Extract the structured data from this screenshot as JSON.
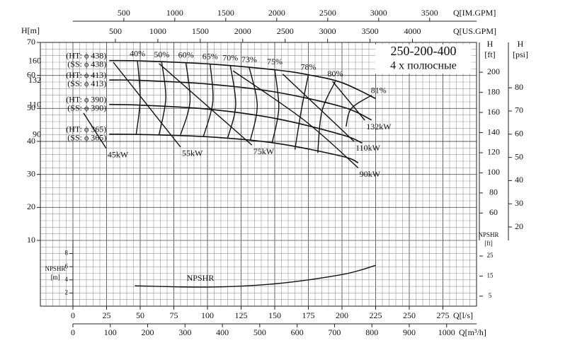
{
  "chart_data": {
    "type": "line",
    "title": "250-200-400",
    "subtitle": "4 х полюсные",
    "grid": true,
    "q_ls": {
      "label": [
        "Q[l/s]"
      ],
      "lim": [
        -24.2,
        300
      ],
      "ticks": [
        0,
        25,
        50,
        75,
        100,
        125,
        150,
        175,
        200,
        225,
        250,
        275
      ],
      "minor_step": 5
    },
    "q_m3h": {
      "label": [
        "Q[m³/h]"
      ],
      "lim": [
        -87.1,
        1080
      ],
      "ticks": [
        0,
        100,
        200,
        300,
        400,
        500,
        600,
        700,
        800,
        900,
        1000
      ]
    },
    "q_us": {
      "label": [
        "Q[US.GPM]"
      ],
      "lim": [
        -384,
        4755
      ],
      "ticks": [
        500,
        1000,
        1500,
        2000,
        2500,
        3000,
        3500,
        4000
      ]
    },
    "q_im": {
      "label": [
        "Q[IM.GPM]"
      ],
      "lim": [
        -319,
        3960
      ],
      "ticks": [
        500,
        1000,
        1500,
        2000,
        2500,
        3000,
        3500
      ]
    },
    "h_m": {
      "label": [
        "H[m]"
      ],
      "lim": [
        10,
        70
      ],
      "ticks": [
        10,
        20,
        30,
        40,
        50,
        60,
        70
      ],
      "minor_step": 2
    },
    "h_ft": {
      "label": [
        "H",
        "[ft]"
      ],
      "lim": [
        32.81,
        229.66
      ],
      "ticks": [
        60,
        80,
        100,
        120,
        140,
        160,
        180,
        200
      ]
    },
    "h_psi": {
      "label": [
        "H",
        "[psi]"
      ],
      "lim": [
        14.22,
        99.56
      ],
      "ticks": [
        20,
        30,
        40,
        50,
        60,
        70,
        80
      ]
    },
    "npshr_m": {
      "label": [
        "NPSHR",
        "[m]"
      ],
      "lim": [
        0,
        10
      ],
      "ticks": [
        2,
        4,
        6,
        8
      ],
      "minor_step": 1
    },
    "npshr_ft": {
      "label": [
        "NPSHR",
        "[ft]"
      ],
      "lim": [
        0,
        32.81
      ],
      "ticks": [
        5,
        15,
        25
      ]
    },
    "impellers": [
      {
        "name": "160",
        "labels": [
          "(HT: ϕ 438)",
          "(SS: ϕ 438)"
        ],
        "x": [
          27,
          50,
          100,
          150,
          175,
          200,
          225
        ],
        "values": [
          64.5,
          64.4,
          63.5,
          61.7,
          60.2,
          57.8,
          53
        ]
      },
      {
        "name": "132",
        "labels": [
          "(HT: ϕ 413)",
          "(SS: ϕ 413)"
        ],
        "x": [
          27,
          50,
          100,
          150,
          200,
          222
        ],
        "values": [
          58.6,
          58.5,
          57.4,
          55,
          50.5,
          46.5
        ]
      },
      {
        "name": "110",
        "labels": [
          "(HT: ϕ 390)",
          "(SS: ϕ 390)"
        ],
        "x": [
          27,
          50,
          100,
          150,
          200,
          215
        ],
        "values": [
          51.2,
          51,
          49.8,
          47,
          42,
          39.5
        ]
      },
      {
        "name": "90",
        "labels": [
          "(HT: ϕ 365)",
          "(SS: ϕ 365)"
        ],
        "x": [
          27,
          50,
          100,
          150,
          200,
          212
        ],
        "values": [
          42.2,
          42.1,
          41.4,
          39.5,
          35.5,
          33.5
        ]
      }
    ],
    "efficiency": [
      {
        "value": 40,
        "label": "40%",
        "x": [
          48,
          50,
          47
        ],
        "values": [
          64.3,
          53,
          42
        ]
      },
      {
        "value": 50,
        "label": "50%",
        "x": [
          66,
          69,
          64
        ],
        "values": [
          64,
          53,
          42
        ]
      },
      {
        "value": 60,
        "label": "60%",
        "x": [
          84,
          87,
          80
        ],
        "values": [
          63.8,
          52,
          42
        ]
      },
      {
        "value": 65,
        "label": "65%",
        "x": [
          102,
          104,
          97
        ],
        "values": [
          63.4,
          52,
          41.5
        ]
      },
      {
        "value": 70,
        "label": "70%",
        "x": [
          117,
          121,
          115
        ],
        "values": [
          63,
          51,
          41
        ]
      },
      {
        "value": 73,
        "label": "73%",
        "x": [
          131,
          137,
          132
        ],
        "values": [
          62.5,
          51,
          40.5
        ]
      },
      {
        "value": 75,
        "label": "75%",
        "x": [
          150,
          153,
          148
        ],
        "values": [
          61.8,
          50,
          39.5
        ]
      },
      {
        "value": 78,
        "label": "78%",
        "x": [
          175,
          170,
          165
        ],
        "values": [
          60.2,
          50,
          37.5
        ]
      },
      {
        "value": 80,
        "label": "80%",
        "x": [
          195,
          185,
          182
        ],
        "values": [
          58.2,
          49,
          36.5
        ]
      },
      {
        "value": 81,
        "label": "81%",
        "x": [
          222,
          207,
          203
        ],
        "values": [
          54,
          50,
          44.5
        ]
      }
    ],
    "power": [
      {
        "value": 45,
        "label": "45kW",
        "x": [
          7.9,
          24.7
        ],
        "values": [
          48.6,
          37.9
        ]
      },
      {
        "value": 55,
        "label": "55kW",
        "x": [
          30,
          80
        ],
        "values": [
          64,
          38.3
        ]
      },
      {
        "value": 75,
        "label": "75kW",
        "x": [
          64,
          133
        ],
        "values": [
          63.6,
          38.9
        ]
      },
      {
        "value": 90,
        "label": "90kW",
        "x": [
          119,
          172,
          212
        ],
        "values": [
          61.4,
          46.4,
          32
        ]
      },
      {
        "value": 110,
        "label": "110kW",
        "x": [
          156,
          209
        ],
        "values": [
          60.4,
          40
        ]
      },
      {
        "value": 132,
        "label": "132kW",
        "x": [
          193,
          217
        ],
        "values": [
          58.2,
          46.4
        ]
      }
    ],
    "npshr": {
      "name": "NPSHR",
      "x": [
        46,
        100,
        150,
        200,
        225
      ],
      "values": [
        3.1,
        2.9,
        3.4,
        4.8,
        6.2
      ]
    }
  }
}
